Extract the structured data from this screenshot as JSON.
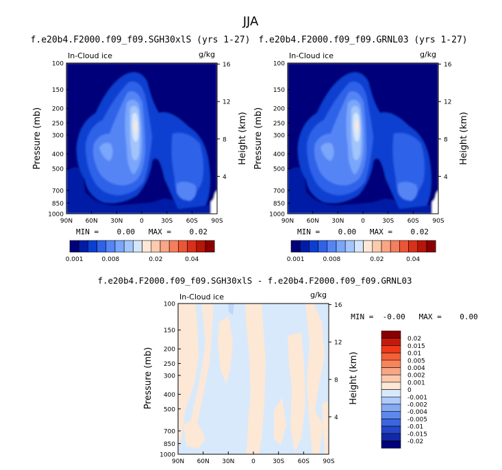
{
  "season": "JJA",
  "panels": [
    {
      "title": "f.e20b4.F2000.f09_f09.SGH30xlS (yrs 1-27)",
      "left_label": "In-Cloud ice",
      "right_label": "g/kg",
      "stats": "MIN =    0.00   MAX =    0.02"
    },
    {
      "title": "f.e20b4.F2000.f09_f09.GRNL03 (yrs 1-27)",
      "left_label": "In-Cloud ice",
      "right_label": "g/kg",
      "stats": "MIN =    0.00   MAX =    0.02"
    },
    {
      "title": "f.e20b4.F2000.f09_f09.SGH30xlS - f.e20b4.F2000.f09_f09.GRNL03",
      "left_label": "In-Cloud ice",
      "right_label": "g/kg",
      "stats": "MIN =  -0.00   MAX =    0.00"
    }
  ],
  "chart_data": {
    "type": "heatmap",
    "y_axis_left": {
      "label": "Pressure (mb)",
      "ticks": [
        "100",
        "150",
        "200",
        "250",
        "300",
        "400",
        "500",
        "700",
        "850",
        "1000"
      ],
      "scale": "log",
      "range": [
        1000,
        100
      ]
    },
    "y_axis_right": {
      "label": "Height (km)",
      "ticks": [
        "16",
        "12",
        "8",
        "4"
      ]
    },
    "x_axis": {
      "ticks": [
        "90N",
        "60N",
        "30N",
        "0",
        "30S",
        "60S",
        "90S"
      ]
    },
    "colorbar_main": {
      "colors": [
        "#00007a",
        "#001ca6",
        "#0b3fd1",
        "#2f62e8",
        "#5585f5",
        "#7aa6fb",
        "#a3c5fb",
        "#d3e6fc",
        "#fde8d6",
        "#fbcbae",
        "#f8a686",
        "#f47e5e",
        "#ec5536",
        "#d8301a",
        "#b61608",
        "#8a0000"
      ],
      "tick_labels": [
        "0.001",
        "0.008",
        "0.02",
        "0.04"
      ]
    },
    "colorbar_diff": {
      "colors": [
        "#8a0000",
        "#c41a0c",
        "#ee3a1b",
        "#f45f37",
        "#f6855c",
        "#f8a686",
        "#fbcaae",
        "#fde8d6",
        "#d8e9fb",
        "#aecbf9",
        "#86aaf4",
        "#5d88ec",
        "#3c66df",
        "#2446c7",
        "#1228a4",
        "#00007a"
      ],
      "labels": [
        "0.02",
        "0.015",
        "0.01",
        "0.005",
        "0.004",
        "0.002",
        "0.001",
        "0",
        "-0.001",
        "-0.002",
        "-0.004",
        "-0.005",
        "-0.01",
        "-0.015",
        "-0.02"
      ]
    }
  }
}
